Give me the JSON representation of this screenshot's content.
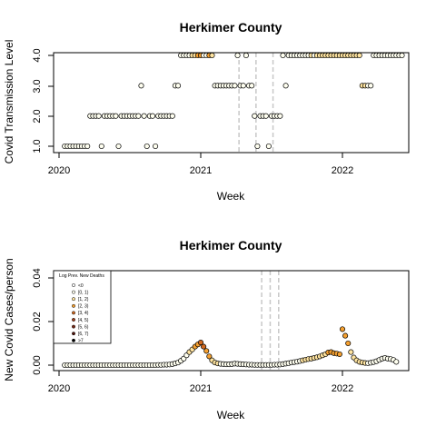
{
  "chart_data": [
    {
      "type": "scatter",
      "title": "Herkimer County",
      "xlabel": "Week",
      "ylabel": "Covid Transmission Level",
      "x_ticks": [
        "2020",
        "2021",
        "2022"
      ],
      "y_ticks": [
        "1.0",
        "2.0",
        "3.0",
        "4.0"
      ],
      "xlim": [
        2020.0,
        2022.5
      ],
      "ylim": [
        0.9,
        4.1
      ],
      "vlines": [
        2021.27,
        2021.39,
        2021.51
      ],
      "colors": {
        "point_low": "#fffff0",
        "point_mid": "#ffe4a0",
        "point_high": "#f5a030",
        "vline": "#c8c8c8"
      },
      "points": [
        [
          2020.04,
          1,
          0
        ],
        [
          2020.06,
          1,
          0
        ],
        [
          2020.08,
          1,
          0
        ],
        [
          2020.1,
          1,
          0
        ],
        [
          2020.12,
          1,
          0
        ],
        [
          2020.14,
          1,
          0
        ],
        [
          2020.16,
          1,
          0
        ],
        [
          2020.18,
          1,
          0
        ],
        [
          2020.2,
          1,
          0
        ],
        [
          2020.22,
          2,
          0
        ],
        [
          2020.24,
          2,
          0
        ],
        [
          2020.26,
          2,
          0
        ],
        [
          2020.28,
          2,
          0
        ],
        [
          2020.3,
          1,
          0
        ],
        [
          2020.32,
          2,
          0
        ],
        [
          2020.34,
          2,
          0
        ],
        [
          2020.36,
          2,
          0
        ],
        [
          2020.38,
          2,
          0
        ],
        [
          2020.4,
          2,
          0
        ],
        [
          2020.42,
          1,
          0
        ],
        [
          2020.44,
          2,
          0
        ],
        [
          2020.46,
          2,
          0
        ],
        [
          2020.48,
          2,
          0
        ],
        [
          2020.5,
          2,
          0
        ],
        [
          2020.52,
          2,
          0
        ],
        [
          2020.54,
          2,
          0
        ],
        [
          2020.56,
          2,
          0
        ],
        [
          2020.58,
          3,
          0
        ],
        [
          2020.6,
          2,
          0
        ],
        [
          2020.62,
          1,
          0
        ],
        [
          2020.64,
          2,
          0
        ],
        [
          2020.66,
          2,
          0
        ],
        [
          2020.68,
          1,
          0
        ],
        [
          2020.7,
          2,
          0
        ],
        [
          2020.72,
          2,
          0
        ],
        [
          2020.74,
          2,
          0
        ],
        [
          2020.76,
          2,
          0
        ],
        [
          2020.78,
          2,
          0
        ],
        [
          2020.8,
          2,
          0
        ],
        [
          2020.82,
          3,
          0
        ],
        [
          2020.84,
          3,
          0
        ],
        [
          2020.86,
          4,
          0
        ],
        [
          2020.88,
          4,
          0
        ],
        [
          2020.9,
          4,
          0
        ],
        [
          2020.92,
          4,
          0
        ],
        [
          2020.94,
          4,
          1
        ],
        [
          2020.96,
          4,
          1
        ],
        [
          2020.98,
          4,
          2
        ],
        [
          2021.0,
          4,
          2
        ],
        [
          2021.02,
          4,
          3
        ],
        [
          2021.04,
          4,
          3
        ],
        [
          2021.06,
          4,
          2
        ],
        [
          2021.08,
          4,
          1
        ],
        [
          2021.1,
          3,
          0
        ],
        [
          2021.12,
          3,
          0
        ],
        [
          2021.14,
          3,
          0
        ],
        [
          2021.16,
          3,
          0
        ],
        [
          2021.18,
          3,
          0
        ],
        [
          2021.2,
          3,
          0
        ],
        [
          2021.22,
          3,
          0
        ],
        [
          2021.24,
          3,
          0
        ],
        [
          2021.26,
          4,
          0
        ],
        [
          2021.28,
          3,
          0
        ],
        [
          2021.3,
          3,
          0
        ],
        [
          2021.32,
          4,
          0
        ],
        [
          2021.34,
          3,
          0
        ],
        [
          2021.36,
          3,
          0
        ],
        [
          2021.38,
          2,
          0
        ],
        [
          2021.4,
          1,
          0
        ],
        [
          2021.42,
          2,
          0
        ],
        [
          2021.44,
          2,
          0
        ],
        [
          2021.46,
          2,
          0
        ],
        [
          2021.48,
          1,
          0
        ],
        [
          2021.5,
          2,
          0
        ],
        [
          2021.52,
          2,
          0
        ],
        [
          2021.54,
          2,
          0
        ],
        [
          2021.56,
          2,
          0
        ],
        [
          2021.58,
          4,
          0
        ],
        [
          2021.6,
          3,
          0
        ],
        [
          2021.62,
          4,
          0
        ],
        [
          2021.64,
          4,
          0
        ],
        [
          2021.66,
          4,
          0
        ],
        [
          2021.68,
          4,
          0
        ],
        [
          2021.7,
          4,
          0
        ],
        [
          2021.72,
          4,
          0
        ],
        [
          2021.74,
          4,
          0
        ],
        [
          2021.76,
          4,
          0
        ],
        [
          2021.78,
          4,
          1
        ],
        [
          2021.8,
          4,
          0
        ],
        [
          2021.82,
          4,
          1
        ],
        [
          2021.84,
          4,
          1
        ],
        [
          2021.86,
          4,
          1
        ],
        [
          2021.88,
          4,
          1
        ],
        [
          2021.9,
          4,
          1
        ],
        [
          2021.92,
          4,
          1
        ],
        [
          2021.94,
          4,
          1
        ],
        [
          2021.96,
          4,
          1
        ],
        [
          2021.98,
          4,
          1
        ],
        [
          2022.0,
          4,
          1
        ],
        [
          2022.02,
          4,
          1
        ],
        [
          2022.04,
          4,
          1
        ],
        [
          2022.06,
          4,
          1
        ],
        [
          2022.08,
          4,
          1
        ],
        [
          2022.1,
          4,
          1
        ],
        [
          2022.12,
          4,
          1
        ],
        [
          2022.14,
          3,
          1
        ],
        [
          2022.16,
          3,
          1
        ],
        [
          2022.18,
          3,
          0
        ],
        [
          2022.2,
          3,
          0
        ],
        [
          2022.22,
          4,
          0
        ],
        [
          2022.24,
          4,
          0
        ],
        [
          2022.26,
          4,
          0
        ],
        [
          2022.28,
          4,
          0
        ],
        [
          2022.3,
          4,
          0
        ],
        [
          2022.32,
          4,
          0
        ],
        [
          2022.34,
          4,
          0
        ],
        [
          2022.36,
          4,
          0
        ],
        [
          2022.38,
          4,
          0
        ],
        [
          2022.4,
          4,
          0
        ],
        [
          2022.42,
          4,
          0
        ]
      ]
    },
    {
      "type": "scatter",
      "title": "Herkimer County",
      "xlabel": "Week",
      "ylabel": "New Covid Cases/person",
      "x_ticks": [
        "2020",
        "2021",
        "2022"
      ],
      "y_ticks": [
        "0.00",
        "0.02",
        "0.04"
      ],
      "xlim": [
        2020.0,
        2022.5
      ],
      "ylim": [
        -0.001,
        0.044
      ],
      "vlines": [
        2021.43,
        2021.49,
        2021.55
      ],
      "legend": {
        "position": "top-left",
        "title": "Log Prev. New Deaths",
        "entries": [
          "<0",
          "[0, 1)",
          "[1, 2)",
          "[2, 3)",
          "[3, 4)",
          "[4, 5)",
          "[5, 6)",
          "[6, 7)",
          ">7"
        ],
        "fills": [
          "#ffffff",
          "#fffff0",
          "#ffe4a0",
          "#f5a030",
          "#d2691e",
          "#a0401e",
          "#782814",
          "#50140a",
          "#000000"
        ]
      },
      "points": [
        [
          2020.04,
          0,
          0
        ],
        [
          2020.06,
          0,
          0
        ],
        [
          2020.08,
          0,
          0
        ],
        [
          2020.1,
          0,
          0
        ],
        [
          2020.12,
          0,
          0
        ],
        [
          2020.14,
          0,
          0
        ],
        [
          2020.16,
          0,
          0
        ],
        [
          2020.18,
          0,
          0
        ],
        [
          2020.2,
          0,
          0
        ],
        [
          2020.22,
          0,
          0
        ],
        [
          2020.24,
          0,
          0
        ],
        [
          2020.26,
          0,
          0
        ],
        [
          2020.28,
          0,
          0
        ],
        [
          2020.3,
          0,
          0
        ],
        [
          2020.32,
          0,
          0
        ],
        [
          2020.34,
          0,
          0
        ],
        [
          2020.36,
          0,
          0
        ],
        [
          2020.38,
          0,
          0
        ],
        [
          2020.4,
          0,
          0
        ],
        [
          2020.42,
          0,
          0
        ],
        [
          2020.44,
          0,
          0
        ],
        [
          2020.46,
          0,
          0
        ],
        [
          2020.48,
          0,
          0
        ],
        [
          2020.5,
          0,
          0
        ],
        [
          2020.52,
          0,
          0
        ],
        [
          2020.54,
          0,
          0
        ],
        [
          2020.56,
          0,
          0
        ],
        [
          2020.58,
          0,
          0
        ],
        [
          2020.6,
          0,
          0
        ],
        [
          2020.62,
          0,
          0
        ],
        [
          2020.64,
          0,
          0
        ],
        [
          2020.66,
          0,
          0
        ],
        [
          2020.68,
          0,
          0
        ],
        [
          2020.7,
          0.0001,
          0
        ],
        [
          2020.72,
          0.0001,
          0
        ],
        [
          2020.74,
          0.0002,
          0
        ],
        [
          2020.76,
          0.0002,
          0
        ],
        [
          2020.78,
          0.0003,
          0
        ],
        [
          2020.8,
          0.0005,
          0
        ],
        [
          2020.82,
          0.0008,
          0
        ],
        [
          2020.84,
          0.0012,
          0
        ],
        [
          2020.86,
          0.002,
          0
        ],
        [
          2020.88,
          0.003,
          0
        ],
        [
          2020.9,
          0.0045,
          0
        ],
        [
          2020.92,
          0.006,
          1
        ],
        [
          2020.94,
          0.0072,
          1
        ],
        [
          2020.96,
          0.0085,
          2
        ],
        [
          2020.98,
          0.0095,
          2
        ],
        [
          2021.0,
          0.0104,
          3
        ],
        [
          2021.02,
          0.0085,
          3
        ],
        [
          2021.04,
          0.0065,
          2
        ],
        [
          2021.06,
          0.004,
          2
        ],
        [
          2021.08,
          0.0022,
          1
        ],
        [
          2021.1,
          0.0012,
          1
        ],
        [
          2021.12,
          0.0008,
          1
        ],
        [
          2021.14,
          0.0006,
          0
        ],
        [
          2021.16,
          0.0005,
          0
        ],
        [
          2021.18,
          0.0004,
          0
        ],
        [
          2021.2,
          0.0004,
          0
        ],
        [
          2021.22,
          0.0005,
          0
        ],
        [
          2021.24,
          0.0007,
          0
        ],
        [
          2021.26,
          0.0006,
          0
        ],
        [
          2021.28,
          0.0005,
          0
        ],
        [
          2021.3,
          0.0004,
          0
        ],
        [
          2021.32,
          0.0003,
          0
        ],
        [
          2021.34,
          0.0002,
          0
        ],
        [
          2021.36,
          0.0002,
          0
        ],
        [
          2021.38,
          0.0001,
          0
        ],
        [
          2021.4,
          0.0001,
          0
        ],
        [
          2021.42,
          0.0001,
          0
        ],
        [
          2021.44,
          0.0001,
          0
        ],
        [
          2021.46,
          0.0001,
          0
        ],
        [
          2021.48,
          0.0001,
          0
        ],
        [
          2021.5,
          0.0001,
          0
        ],
        [
          2021.52,
          0.0002,
          0
        ],
        [
          2021.54,
          0.0002,
          0
        ],
        [
          2021.56,
          0.0003,
          0
        ],
        [
          2021.58,
          0.0005,
          0
        ],
        [
          2021.6,
          0.0007,
          0
        ],
        [
          2021.62,
          0.0009,
          0
        ],
        [
          2021.64,
          0.0012,
          0
        ],
        [
          2021.66,
          0.0014,
          0
        ],
        [
          2021.68,
          0.0016,
          0
        ],
        [
          2021.7,
          0.0019,
          0
        ],
        [
          2021.72,
          0.0022,
          1
        ],
        [
          2021.74,
          0.0025,
          1
        ],
        [
          2021.76,
          0.0028,
          1
        ],
        [
          2021.78,
          0.003,
          1
        ],
        [
          2021.8,
          0.0033,
          1
        ],
        [
          2021.82,
          0.0036,
          1
        ],
        [
          2021.84,
          0.004,
          1
        ],
        [
          2021.86,
          0.0045,
          1
        ],
        [
          2021.88,
          0.005,
          1
        ],
        [
          2021.9,
          0.0058,
          2
        ],
        [
          2021.92,
          0.006,
          2
        ],
        [
          2021.94,
          0.0055,
          2
        ],
        [
          2021.96,
          0.0053,
          2
        ],
        [
          2021.98,
          0.005,
          2
        ],
        [
          2022.0,
          0.0165,
          2
        ],
        [
          2022.02,
          0.0135,
          2
        ],
        [
          2022.04,
          0.01,
          2
        ],
        [
          2022.06,
          0.006,
          1
        ],
        [
          2022.08,
          0.0035,
          1
        ],
        [
          2022.1,
          0.0022,
          1
        ],
        [
          2022.12,
          0.0015,
          1
        ],
        [
          2022.14,
          0.0012,
          1
        ],
        [
          2022.16,
          0.001,
          1
        ],
        [
          2022.18,
          0.0009,
          0
        ],
        [
          2022.2,
          0.0011,
          0
        ],
        [
          2022.22,
          0.0014,
          0
        ],
        [
          2022.24,
          0.0018,
          0
        ],
        [
          2022.26,
          0.0024,
          0
        ],
        [
          2022.28,
          0.003,
          0
        ],
        [
          2022.3,
          0.0033,
          0
        ],
        [
          2022.32,
          0.003,
          0
        ],
        [
          2022.34,
          0.0028,
          0
        ],
        [
          2022.36,
          0.0024,
          0
        ],
        [
          2022.38,
          0.0015,
          0
        ]
      ]
    }
  ]
}
